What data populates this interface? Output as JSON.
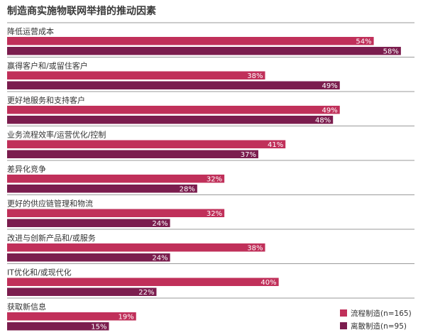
{
  "colors": {
    "series1": "#c0305a",
    "series2": "#7b1d4e",
    "rule": "#9a9a9a"
  },
  "chart_data": {
    "type": "bar",
    "orientation": "horizontal",
    "title": "制造商实施物联网举措的推动因素",
    "categories": [
      "降低运营成本",
      "赢得客户和/或留住客户",
      "更好地服务和支持客户",
      "业务流程效率/运营优化/控制",
      "差异化竞争",
      "更好的供应链管理和物流",
      "改进与创新产品和/或服务",
      "IT优化和/或现代化",
      "获取新信息"
    ],
    "series": [
      {
        "name": "流程制造(n=165)",
        "values": [
          54,
          38,
          49,
          41,
          32,
          32,
          38,
          40,
          19
        ],
        "labels": [
          "54%",
          "38%",
          "49%",
          "41%",
          "32%",
          "32%",
          "38%",
          "40%",
          "19%"
        ]
      },
      {
        "name": "离散制造(n=95)",
        "values": [
          58,
          49,
          48,
          37,
          28,
          24,
          24,
          22,
          15
        ],
        "labels": [
          "58%",
          "49%",
          "48%",
          "37%",
          "28%",
          "24%",
          "24%",
          "22%",
          "15%"
        ]
      }
    ],
    "xlim": [
      0,
      60
    ],
    "grid": false,
    "legend": "bottom-right"
  }
}
